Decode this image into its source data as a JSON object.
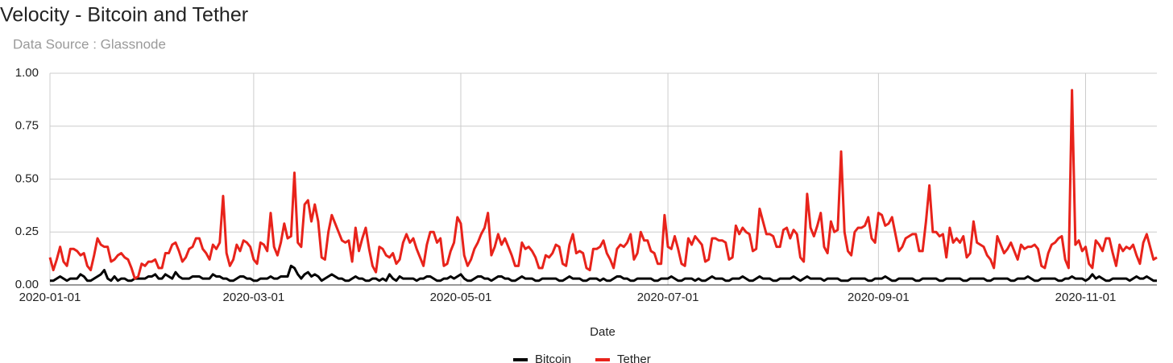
{
  "chart_data": {
    "type": "line",
    "title": "Velocity - Bitcoin and Tether",
    "subtitle": "Data Source : Glassnode",
    "x_label": "Date",
    "xlim": [
      "2020-01-01",
      "2020-11-22"
    ],
    "xticks": [
      "2020-01-01",
      "2020-03-01",
      "2020-05-01",
      "2020-07-01",
      "2020-09-01",
      "2020-11-01"
    ],
    "ylim": [
      0,
      1
    ],
    "yticks": [
      {
        "value": 0,
        "label": "0.00"
      },
      {
        "value": 0.25,
        "label": "0.25"
      },
      {
        "value": 0.5,
        "label": "0.50"
      },
      {
        "value": 0.75,
        "label": "0.75"
      },
      {
        "value": 1,
        "label": "1.00"
      }
    ],
    "grid": true,
    "legend": "bottom",
    "x": [
      "2020-01-01",
      "2020-01-02",
      "2020-01-03",
      "2020-01-04",
      "2020-01-05",
      "2020-01-06",
      "2020-01-07",
      "2020-01-08",
      "2020-01-09",
      "2020-01-10",
      "2020-01-11",
      "2020-01-12",
      "2020-01-13",
      "2020-01-14",
      "2020-01-15",
      "2020-01-16",
      "2020-01-17",
      "2020-01-18",
      "2020-01-19",
      "2020-01-20",
      "2020-01-21",
      "2020-01-22",
      "2020-01-23",
      "2020-01-24",
      "2020-01-25",
      "2020-01-26",
      "2020-01-27",
      "2020-01-28",
      "2020-01-29",
      "2020-01-30",
      "2020-01-31",
      "2020-02-01",
      "2020-02-02",
      "2020-02-03",
      "2020-02-04",
      "2020-02-05",
      "2020-02-06",
      "2020-02-07",
      "2020-02-08",
      "2020-02-09",
      "2020-02-10",
      "2020-02-11",
      "2020-02-12",
      "2020-02-13",
      "2020-02-14",
      "2020-02-15",
      "2020-02-16",
      "2020-02-17",
      "2020-02-18",
      "2020-02-19",
      "2020-02-20",
      "2020-02-21",
      "2020-02-22",
      "2020-02-23",
      "2020-02-24",
      "2020-02-25",
      "2020-02-26",
      "2020-02-27",
      "2020-02-28",
      "2020-02-29",
      "2020-03-01",
      "2020-03-02",
      "2020-03-03",
      "2020-03-04",
      "2020-03-05",
      "2020-03-06",
      "2020-03-07",
      "2020-03-08",
      "2020-03-09",
      "2020-03-10",
      "2020-03-11",
      "2020-03-12",
      "2020-03-13",
      "2020-03-14",
      "2020-03-15",
      "2020-03-16",
      "2020-03-17",
      "2020-03-18",
      "2020-03-19",
      "2020-03-20",
      "2020-03-21",
      "2020-03-22",
      "2020-03-23",
      "2020-03-24",
      "2020-03-25",
      "2020-03-26",
      "2020-03-27",
      "2020-03-28",
      "2020-03-29",
      "2020-03-30",
      "2020-03-31",
      "2020-04-01",
      "2020-04-02",
      "2020-04-03",
      "2020-04-04",
      "2020-04-05",
      "2020-04-06",
      "2020-04-07",
      "2020-04-08",
      "2020-04-09",
      "2020-04-10",
      "2020-04-11",
      "2020-04-12",
      "2020-04-13",
      "2020-04-14",
      "2020-04-15",
      "2020-04-16",
      "2020-04-17",
      "2020-04-18",
      "2020-04-19",
      "2020-04-20",
      "2020-04-21",
      "2020-04-22",
      "2020-04-23",
      "2020-04-24",
      "2020-04-25",
      "2020-04-26",
      "2020-04-27",
      "2020-04-28",
      "2020-04-29",
      "2020-04-30",
      "2020-05-01",
      "2020-05-02",
      "2020-05-03",
      "2020-05-04",
      "2020-05-05",
      "2020-05-06",
      "2020-05-07",
      "2020-05-08",
      "2020-05-09",
      "2020-05-10",
      "2020-05-11",
      "2020-05-12",
      "2020-05-13",
      "2020-05-14",
      "2020-05-15",
      "2020-05-16",
      "2020-05-17",
      "2020-05-18",
      "2020-05-19",
      "2020-05-20",
      "2020-05-21",
      "2020-05-22",
      "2020-05-23",
      "2020-05-24",
      "2020-05-25",
      "2020-05-26",
      "2020-05-27",
      "2020-05-28",
      "2020-05-29",
      "2020-05-30",
      "2020-05-31",
      "2020-06-01",
      "2020-06-02",
      "2020-06-03",
      "2020-06-04",
      "2020-06-05",
      "2020-06-06",
      "2020-06-07",
      "2020-06-08",
      "2020-06-09",
      "2020-06-10",
      "2020-06-11",
      "2020-06-12",
      "2020-06-13",
      "2020-06-14",
      "2020-06-15",
      "2020-06-16",
      "2020-06-17",
      "2020-06-18",
      "2020-06-19",
      "2020-06-20",
      "2020-06-21",
      "2020-06-22",
      "2020-06-23",
      "2020-06-24",
      "2020-06-25",
      "2020-06-26",
      "2020-06-27",
      "2020-06-28",
      "2020-06-29",
      "2020-06-30",
      "2020-07-01",
      "2020-07-02",
      "2020-07-03",
      "2020-07-04",
      "2020-07-05",
      "2020-07-06",
      "2020-07-07",
      "2020-07-08",
      "2020-07-09",
      "2020-07-10",
      "2020-07-11",
      "2020-07-12",
      "2020-07-13",
      "2020-07-14",
      "2020-07-15",
      "2020-07-16",
      "2020-07-17",
      "2020-07-18",
      "2020-07-19",
      "2020-07-20",
      "2020-07-21",
      "2020-07-22",
      "2020-07-23",
      "2020-07-24",
      "2020-07-25",
      "2020-07-26",
      "2020-07-27",
      "2020-07-28",
      "2020-07-29",
      "2020-07-30",
      "2020-07-31",
      "2020-08-01",
      "2020-08-02",
      "2020-08-03",
      "2020-08-04",
      "2020-08-05",
      "2020-08-06",
      "2020-08-07",
      "2020-08-08",
      "2020-08-09",
      "2020-08-10",
      "2020-08-11",
      "2020-08-12",
      "2020-08-13",
      "2020-08-14",
      "2020-08-15",
      "2020-08-16",
      "2020-08-17",
      "2020-08-18",
      "2020-08-19",
      "2020-08-20",
      "2020-08-21",
      "2020-08-22",
      "2020-08-23",
      "2020-08-24",
      "2020-08-25",
      "2020-08-26",
      "2020-08-27",
      "2020-08-28",
      "2020-08-29",
      "2020-08-30",
      "2020-08-31",
      "2020-09-01",
      "2020-09-02",
      "2020-09-03",
      "2020-09-04",
      "2020-09-05",
      "2020-09-06",
      "2020-09-07",
      "2020-09-08",
      "2020-09-09",
      "2020-09-10",
      "2020-09-11",
      "2020-09-12",
      "2020-09-13",
      "2020-09-14",
      "2020-09-15",
      "2020-09-16",
      "2020-09-17",
      "2020-09-18",
      "2020-09-19",
      "2020-09-20",
      "2020-09-21",
      "2020-09-22",
      "2020-09-23",
      "2020-09-24",
      "2020-09-25",
      "2020-09-26",
      "2020-09-27",
      "2020-09-28",
      "2020-09-29",
      "2020-09-30",
      "2020-10-01",
      "2020-10-02",
      "2020-10-03",
      "2020-10-04",
      "2020-10-05",
      "2020-10-06",
      "2020-10-07",
      "2020-10-08",
      "2020-10-09",
      "2020-10-10",
      "2020-10-11",
      "2020-10-12",
      "2020-10-13",
      "2020-10-14",
      "2020-10-15",
      "2020-10-16",
      "2020-10-17",
      "2020-10-18",
      "2020-10-19",
      "2020-10-20",
      "2020-10-21",
      "2020-10-22",
      "2020-10-23",
      "2020-10-24",
      "2020-10-25",
      "2020-10-26",
      "2020-10-27",
      "2020-10-28",
      "2020-10-29",
      "2020-10-30",
      "2020-10-31",
      "2020-11-01",
      "2020-11-02",
      "2020-11-03",
      "2020-11-04",
      "2020-11-05",
      "2020-11-06",
      "2020-11-07",
      "2020-11-08",
      "2020-11-09",
      "2020-11-10",
      "2020-11-11",
      "2020-11-12",
      "2020-11-13",
      "2020-11-14",
      "2020-11-15",
      "2020-11-16",
      "2020-11-17",
      "2020-11-18",
      "2020-11-19",
      "2020-11-20",
      "2020-11-21",
      "2020-11-22"
    ],
    "series": [
      {
        "name": "Bitcoin",
        "color": "#000000",
        "values": [
          0.02,
          0.02,
          0.03,
          0.04,
          0.03,
          0.02,
          0.03,
          0.03,
          0.03,
          0.05,
          0.04,
          0.02,
          0.02,
          0.03,
          0.04,
          0.05,
          0.07,
          0.03,
          0.02,
          0.04,
          0.02,
          0.03,
          0.03,
          0.02,
          0.02,
          0.03,
          0.03,
          0.03,
          0.03,
          0.04,
          0.04,
          0.05,
          0.03,
          0.03,
          0.05,
          0.04,
          0.03,
          0.06,
          0.04,
          0.03,
          0.03,
          0.03,
          0.04,
          0.04,
          0.04,
          0.03,
          0.03,
          0.03,
          0.05,
          0.04,
          0.04,
          0.03,
          0.03,
          0.02,
          0.02,
          0.03,
          0.04,
          0.04,
          0.03,
          0.03,
          0.02,
          0.02,
          0.03,
          0.03,
          0.03,
          0.04,
          0.03,
          0.03,
          0.04,
          0.04,
          0.04,
          0.09,
          0.08,
          0.05,
          0.03,
          0.05,
          0.06,
          0.04,
          0.05,
          0.04,
          0.02,
          0.03,
          0.04,
          0.05,
          0.04,
          0.03,
          0.03,
          0.02,
          0.02,
          0.03,
          0.04,
          0.03,
          0.03,
          0.02,
          0.02,
          0.03,
          0.03,
          0.02,
          0.03,
          0.02,
          0.05,
          0.03,
          0.02,
          0.04,
          0.03,
          0.03,
          0.03,
          0.03,
          0.02,
          0.03,
          0.03,
          0.04,
          0.04,
          0.03,
          0.02,
          0.02,
          0.03,
          0.03,
          0.04,
          0.03,
          0.04,
          0.05,
          0.03,
          0.02,
          0.02,
          0.03,
          0.04,
          0.04,
          0.03,
          0.03,
          0.02,
          0.03,
          0.04,
          0.04,
          0.03,
          0.03,
          0.02,
          0.02,
          0.03,
          0.04,
          0.03,
          0.03,
          0.03,
          0.02,
          0.02,
          0.03,
          0.03,
          0.03,
          0.03,
          0.03,
          0.02,
          0.02,
          0.03,
          0.04,
          0.03,
          0.03,
          0.03,
          0.02,
          0.02,
          0.03,
          0.03,
          0.03,
          0.02,
          0.03,
          0.02,
          0.02,
          0.03,
          0.04,
          0.04,
          0.03,
          0.03,
          0.02,
          0.02,
          0.03,
          0.03,
          0.03,
          0.03,
          0.03,
          0.02,
          0.02,
          0.03,
          0.03,
          0.03,
          0.04,
          0.03,
          0.02,
          0.02,
          0.03,
          0.03,
          0.03,
          0.02,
          0.03,
          0.02,
          0.02,
          0.03,
          0.04,
          0.03,
          0.03,
          0.03,
          0.02,
          0.02,
          0.03,
          0.03,
          0.03,
          0.04,
          0.03,
          0.02,
          0.02,
          0.03,
          0.04,
          0.03,
          0.03,
          0.03,
          0.02,
          0.02,
          0.03,
          0.03,
          0.03,
          0.03,
          0.04,
          0.03,
          0.02,
          0.03,
          0.04,
          0.03,
          0.03,
          0.03,
          0.03,
          0.02,
          0.03,
          0.03,
          0.03,
          0.03,
          0.02,
          0.02,
          0.02,
          0.03,
          0.03,
          0.03,
          0.03,
          0.03,
          0.02,
          0.02,
          0.03,
          0.03,
          0.03,
          0.04,
          0.03,
          0.02,
          0.02,
          0.03,
          0.03,
          0.03,
          0.03,
          0.03,
          0.02,
          0.02,
          0.03,
          0.03,
          0.03,
          0.03,
          0.03,
          0.02,
          0.02,
          0.03,
          0.03,
          0.03,
          0.03,
          0.03,
          0.02,
          0.02,
          0.03,
          0.03,
          0.03,
          0.03,
          0.03,
          0.02,
          0.02,
          0.03,
          0.03,
          0.03,
          0.03,
          0.03,
          0.02,
          0.02,
          0.03,
          0.03,
          0.03,
          0.04,
          0.03,
          0.02,
          0.02,
          0.03,
          0.03,
          0.03,
          0.03,
          0.03,
          0.02,
          0.02,
          0.03,
          0.03,
          0.04,
          0.03,
          0.03,
          0.03,
          0.02,
          0.03,
          0.05,
          0.03,
          0.04,
          0.03,
          0.02,
          0.02,
          0.03,
          0.03,
          0.03,
          0.03,
          0.03,
          0.02,
          0.03,
          0.04,
          0.03,
          0.03,
          0.04,
          0.03,
          0.02,
          0.02
        ]
      },
      {
        "name": "Tether",
        "color": "#e8231b",
        "values": [
          0.13,
          0.07,
          0.12,
          0.18,
          0.11,
          0.09,
          0.17,
          0.17,
          0.16,
          0.14,
          0.15,
          0.09,
          0.07,
          0.14,
          0.22,
          0.19,
          0.18,
          0.18,
          0.11,
          0.12,
          0.14,
          0.15,
          0.13,
          0.12,
          0.08,
          0.03,
          0.04,
          0.1,
          0.09,
          0.11,
          0.11,
          0.12,
          0.08,
          0.08,
          0.15,
          0.15,
          0.19,
          0.2,
          0.16,
          0.11,
          0.13,
          0.17,
          0.18,
          0.22,
          0.22,
          0.17,
          0.15,
          0.12,
          0.19,
          0.17,
          0.2,
          0.42,
          0.15,
          0.09,
          0.12,
          0.19,
          0.16,
          0.21,
          0.2,
          0.18,
          0.12,
          0.1,
          0.2,
          0.19,
          0.16,
          0.34,
          0.18,
          0.14,
          0.2,
          0.29,
          0.22,
          0.23,
          0.53,
          0.2,
          0.18,
          0.38,
          0.4,
          0.3,
          0.38,
          0.3,
          0.13,
          0.12,
          0.25,
          0.33,
          0.29,
          0.25,
          0.21,
          0.2,
          0.21,
          0.11,
          0.27,
          0.16,
          0.22,
          0.27,
          0.17,
          0.09,
          0.06,
          0.18,
          0.17,
          0.14,
          0.13,
          0.15,
          0.1,
          0.12,
          0.2,
          0.24,
          0.2,
          0.22,
          0.17,
          0.13,
          0.09,
          0.19,
          0.25,
          0.25,
          0.2,
          0.22,
          0.09,
          0.1,
          0.16,
          0.2,
          0.32,
          0.29,
          0.14,
          0.09,
          0.12,
          0.17,
          0.2,
          0.24,
          0.27,
          0.34,
          0.14,
          0.18,
          0.24,
          0.19,
          0.22,
          0.18,
          0.14,
          0.09,
          0.09,
          0.2,
          0.17,
          0.18,
          0.16,
          0.13,
          0.08,
          0.08,
          0.14,
          0.13,
          0.15,
          0.19,
          0.18,
          0.1,
          0.09,
          0.19,
          0.24,
          0.15,
          0.16,
          0.15,
          0.08,
          0.07,
          0.17,
          0.17,
          0.18,
          0.21,
          0.15,
          0.12,
          0.08,
          0.17,
          0.19,
          0.18,
          0.2,
          0.24,
          0.12,
          0.15,
          0.25,
          0.21,
          0.21,
          0.16,
          0.15,
          0.1,
          0.1,
          0.33,
          0.18,
          0.17,
          0.23,
          0.17,
          0.1,
          0.09,
          0.22,
          0.19,
          0.23,
          0.21,
          0.19,
          0.11,
          0.12,
          0.22,
          0.22,
          0.21,
          0.21,
          0.2,
          0.12,
          0.13,
          0.28,
          0.24,
          0.27,
          0.25,
          0.24,
          0.16,
          0.17,
          0.36,
          0.3,
          0.24,
          0.24,
          0.23,
          0.18,
          0.18,
          0.26,
          0.27,
          0.22,
          0.26,
          0.24,
          0.13,
          0.11,
          0.43,
          0.27,
          0.23,
          0.28,
          0.34,
          0.18,
          0.15,
          0.3,
          0.25,
          0.26,
          0.63,
          0.25,
          0.16,
          0.14,
          0.25,
          0.27,
          0.27,
          0.28,
          0.32,
          0.22,
          0.2,
          0.34,
          0.33,
          0.28,
          0.29,
          0.32,
          0.24,
          0.16,
          0.18,
          0.22,
          0.23,
          0.24,
          0.24,
          0.16,
          0.16,
          0.3,
          0.47,
          0.25,
          0.25,
          0.23,
          0.24,
          0.13,
          0.27,
          0.2,
          0.22,
          0.2,
          0.23,
          0.13,
          0.15,
          0.3,
          0.2,
          0.19,
          0.18,
          0.14,
          0.12,
          0.08,
          0.23,
          0.19,
          0.15,
          0.17,
          0.2,
          0.16,
          0.12,
          0.19,
          0.17,
          0.18,
          0.18,
          0.19,
          0.17,
          0.09,
          0.08,
          0.15,
          0.19,
          0.2,
          0.22,
          0.23,
          0.12,
          0.08,
          0.92,
          0.19,
          0.21,
          0.16,
          0.18,
          0.1,
          0.08,
          0.21,
          0.19,
          0.16,
          0.22,
          0.22,
          0.15,
          0.09,
          0.19,
          0.16,
          0.18,
          0.17,
          0.19,
          0.14,
          0.1,
          0.2,
          0.24,
          0.18,
          0.12,
          0.13
        ]
      }
    ]
  }
}
